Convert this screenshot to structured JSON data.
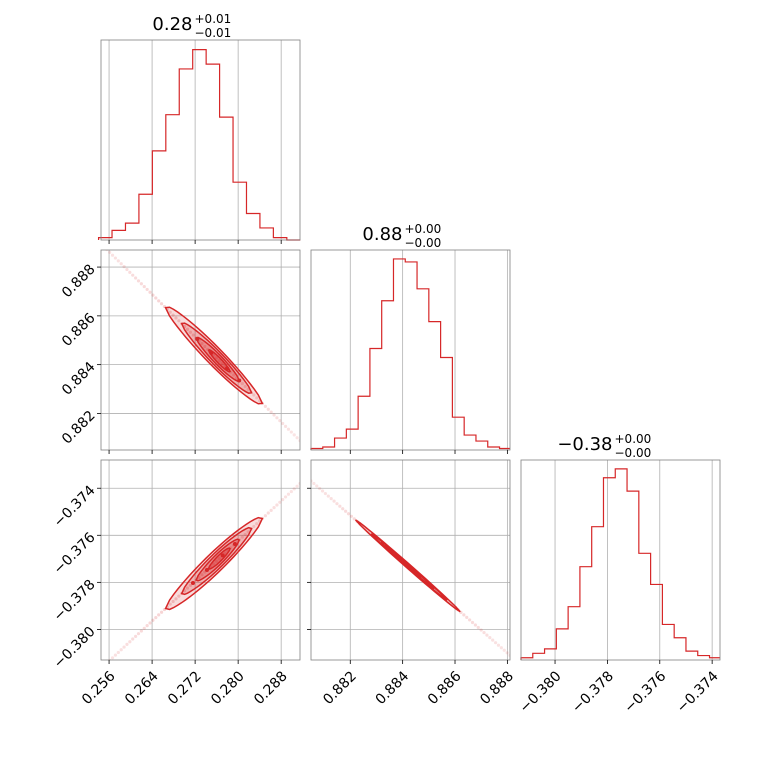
{
  "figure": {
    "type": "corner-plot"
  },
  "chart_data": [
    {
      "type": "bar",
      "panel": "hist-1",
      "title": {
        "value": "0.28",
        "sup": "+0.01",
        "sub": "−0.01"
      },
      "bin_edges": [
        0.25405,
        0.25655,
        0.25905,
        0.26155,
        0.26405,
        0.26655,
        0.26905,
        0.27155,
        0.27405,
        0.27655,
        0.27905,
        0.28155,
        0.28405,
        0.28655,
        0.28905,
        0.29155
      ],
      "counts": [
        1,
        4,
        7,
        19,
        37,
        52,
        71,
        79,
        73,
        51,
        24,
        11,
        5,
        1,
        0
      ],
      "xlim": [
        0.2545,
        0.2915
      ],
      "ylim": [
        0,
        83
      ],
      "xticks": [
        0.256,
        0.264,
        0.272,
        0.28,
        0.288
      ],
      "grid": true,
      "color": "#d62728"
    },
    {
      "type": "bar",
      "panel": "hist-2",
      "title": {
        "value": "0.88",
        "sup": "+0.00",
        "sub": "−0.00"
      },
      "bin_edges": [
        0.8805,
        0.88095,
        0.8814,
        0.88185,
        0.8823,
        0.88275,
        0.8832,
        0.88365,
        0.8841,
        0.88455,
        0.885,
        0.88545,
        0.8859,
        0.88635,
        0.8868,
        0.88725,
        0.8877,
        0.8881
      ],
      "counts": [
        1,
        2,
        8,
        14,
        36,
        68,
        100,
        128,
        126,
        108,
        86,
        62,
        22,
        10,
        6,
        2,
        1
      ],
      "xlim": [
        0.8805,
        0.8881
      ],
      "ylim": [
        0,
        134
      ],
      "xticks": [
        0.882,
        0.884,
        0.886,
        0.888
      ],
      "grid": true,
      "color": "#d62728"
    },
    {
      "type": "bar",
      "panel": "hist-3",
      "title": {
        "value": "−0.38",
        "sup": "+0.00",
        "sub": "−0.00"
      },
      "bin_edges": [
        -0.3813,
        -0.38085,
        -0.3804,
        -0.37995,
        -0.3795,
        -0.37905,
        -0.3786,
        -0.37815,
        -0.3777,
        -0.37725,
        -0.3768,
        -0.37635,
        -0.3759,
        -0.37545,
        -0.375,
        -0.37455,
        -0.3741,
        -0.3737
      ],
      "counts": [
        1,
        3,
        5,
        14,
        24,
        42,
        60,
        82,
        86,
        76,
        48,
        34,
        16,
        10,
        4,
        2,
        1
      ],
      "xlim": [
        -0.3813,
        -0.3737
      ],
      "ylim": [
        0,
        90
      ],
      "xticks": [
        -0.38,
        -0.378,
        -0.376,
        -0.374
      ],
      "xticklabels": [
        "−0.380",
        "−0.378",
        "−0.376",
        "−0.374"
      ],
      "grid": true,
      "color": "#d62728"
    },
    {
      "type": "scatter",
      "panel": "scatter-2-1",
      "x_param": 1,
      "y_param": 2,
      "xlim": [
        0.2545,
        0.2915
      ],
      "ylim": [
        0.8805,
        0.8887
      ],
      "xticks": [
        0.256,
        0.264,
        0.272,
        0.28,
        0.288
      ],
      "yticks": [
        0.882,
        0.884,
        0.886,
        0.888
      ],
      "center": [
        0.2763,
        0.8842
      ],
      "slope": -0.2181,
      "sample_range": [
        0.2545,
        0.2915
      ],
      "levels": [
        {
          "x": [
            0.2665,
            0.2845
          ],
          "half_width": 0.0005,
          "alpha": 0.16
        },
        {
          "x": [
            0.2695,
            0.2825
          ],
          "half_width": 0.00038,
          "alpha": 0.22
        },
        {
          "x": [
            0.2722,
            0.2802
          ],
          "half_width": 0.00026,
          "alpha": 0.28
        },
        {
          "x": [
            0.2745,
            0.2785
          ],
          "half_width": 0.00014,
          "alpha": 0.34
        }
      ],
      "grid": true,
      "color": "#d62728"
    },
    {
      "type": "scatter",
      "panel": "scatter-3-1",
      "x_param": 1,
      "y_param": 3,
      "xlim": [
        0.2545,
        0.2915
      ],
      "ylim": [
        -0.3813,
        -0.3728
      ],
      "xticks": [
        0.256,
        0.264,
        0.272,
        0.28,
        0.288
      ],
      "yticks": [
        -0.374,
        -0.376,
        -0.378,
        -0.38
      ],
      "yticklabels": [
        "−0.374",
        "−0.376",
        "−0.378",
        "−0.380"
      ],
      "center": [
        0.2755,
        -0.3772
      ],
      "slope": 0.2125,
      "sample_range": [
        0.2545,
        0.2915
      ],
      "levels": [
        {
          "x": [
            0.2665,
            0.2845
          ],
          "half_width": 0.00055,
          "alpha": 0.16
        },
        {
          "x": [
            0.2695,
            0.2825
          ],
          "half_width": 0.00042,
          "alpha": 0.22
        },
        {
          "x": [
            0.2722,
            0.2802
          ],
          "half_width": 0.00029,
          "alpha": 0.28
        },
        {
          "x": [
            0.2745,
            0.2785
          ],
          "half_width": 0.00016,
          "alpha": 0.34
        }
      ],
      "grid": true,
      "color": "#d62728"
    },
    {
      "type": "scatter",
      "panel": "scatter-3-2",
      "x_param": 2,
      "y_param": 3,
      "xlim": [
        0.8805,
        0.8881
      ],
      "ylim": [
        -0.3813,
        -0.3728
      ],
      "xticks": [
        0.882,
        0.884,
        0.886,
        0.888
      ],
      "yticks": [
        -0.374,
        -0.376,
        -0.378,
        -0.38
      ],
      "center": [
        0.8841,
        -0.3772
      ],
      "slope": -0.9753,
      "sample_range": [
        0.8805,
        0.8881
      ],
      "levels": [
        {
          "x": [
            0.8822,
            0.8862
          ],
          "half_width": 0.00012,
          "alpha": 0.16
        },
        {
          "x": [
            0.8828,
            0.8857
          ],
          "half_width": 9e-05,
          "alpha": 0.22
        },
        {
          "x": [
            0.8833,
            0.8852
          ],
          "half_width": 6e-05,
          "alpha": 0.28
        },
        {
          "x": [
            0.8837,
            0.8847
          ],
          "half_width": 4e-05,
          "alpha": 0.34
        }
      ],
      "grid": true,
      "color": "#d62728"
    }
  ]
}
